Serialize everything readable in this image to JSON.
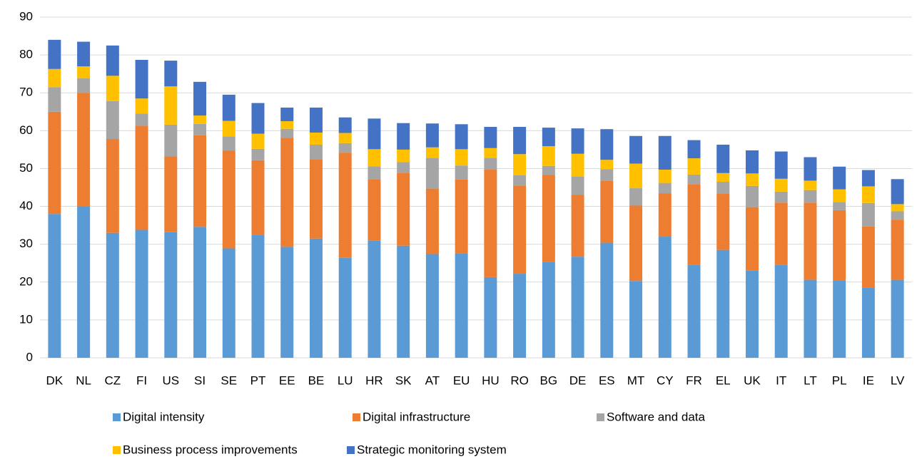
{
  "chart_data": {
    "type": "stacked_bar",
    "categories": [
      "DK",
      "NL",
      "CZ",
      "FI",
      "US",
      "SI",
      "SE",
      "PT",
      "EE",
      "BE",
      "LU",
      "HR",
      "SK",
      "AT",
      "EU",
      "HU",
      "RO",
      "BG",
      "DE",
      "ES",
      "MT",
      "CY",
      "FR",
      "EL",
      "UK",
      "IT",
      "LT",
      "PL",
      "IE",
      "LV"
    ],
    "series": [
      {
        "name": "Digital intensity",
        "color": "#5b9bd5",
        "values": [
          38,
          40,
          33,
          33.8,
          33.2,
          34.6,
          28.9,
          32.5,
          29.3,
          31.5,
          26.4,
          30.9,
          29.6,
          27.4,
          27.5,
          21.3,
          22.2,
          25.3,
          26.7,
          30.4,
          20.3,
          32,
          24.6,
          28.5,
          23,
          24.5,
          20.6,
          20.5,
          18.6,
          20.6
        ]
      },
      {
        "name": "Digital infrastructure",
        "color": "#ed7d31",
        "values": [
          27,
          30,
          24.8,
          27.5,
          20,
          24.2,
          25.8,
          19.7,
          28.8,
          21,
          27.8,
          16.3,
          19.3,
          17.3,
          19.6,
          28.4,
          23.3,
          23,
          16.4,
          16.3,
          19.9,
          11.4,
          21.3,
          14.8,
          16.8,
          16.5,
          20.4,
          18.5,
          16.1,
          15.9
        ]
      },
      {
        "name": "Software and data",
        "color": "#a5a5a5",
        "values": [
          6.5,
          3.8,
          10,
          3.2,
          8.4,
          3,
          3.8,
          3,
          2.4,
          3.8,
          2.5,
          3.4,
          2.8,
          8.1,
          3.7,
          3.1,
          2.7,
          2.4,
          4.8,
          3.1,
          4.6,
          2.8,
          2.5,
          3.2,
          5.6,
          2.9,
          3.3,
          2.2,
          6.2,
          2.2
        ]
      },
      {
        "name": "Business process improvements",
        "color": "#ffc000",
        "values": [
          4.8,
          3.2,
          6.7,
          4,
          10.1,
          2.2,
          4.1,
          4,
          2,
          3.2,
          2.7,
          4.5,
          3.3,
          2.8,
          4.3,
          2.6,
          5.6,
          5.2,
          6,
          2.5,
          6.5,
          3.5,
          4.3,
          2.3,
          3.3,
          3.4,
          2.5,
          3.3,
          4.4,
          1.9
        ]
      },
      {
        "name": "Strategic monitoring system",
        "color": "#4472c4",
        "values": [
          7.7,
          6.5,
          8,
          10.2,
          6.8,
          8.9,
          6.9,
          8.1,
          3.6,
          6.6,
          4.1,
          8.1,
          7,
          6.3,
          6.6,
          5.6,
          7.2,
          4.9,
          6.7,
          8.1,
          7.3,
          8.9,
          4.8,
          7.5,
          6.1,
          7.2,
          6.2,
          6,
          4.3,
          6.6
        ]
      }
    ],
    "ylim": [
      0,
      90
    ],
    "yticks": [
      0,
      10,
      20,
      30,
      40,
      50,
      60,
      70,
      80,
      90
    ],
    "grid": true
  }
}
